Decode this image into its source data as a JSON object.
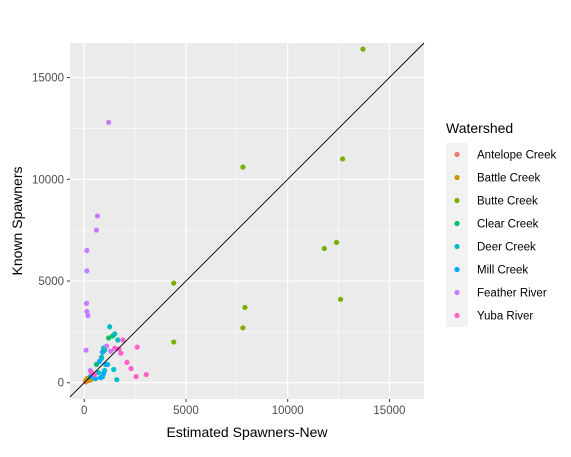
{
  "chart_data": {
    "type": "scatter",
    "title": "",
    "xlabel": "Estimated Spawners-New",
    "ylabel": "Known Spawners",
    "xlim": [
      -700,
      16700
    ],
    "ylim": [
      -800,
      16700
    ],
    "x_ticks": [
      {
        "value": 0,
        "label": "0"
      },
      {
        "value": 5000,
        "label": "5000"
      },
      {
        "value": 10000,
        "label": "10000"
      },
      {
        "value": 15000,
        "label": "15000"
      }
    ],
    "y_ticks": [
      {
        "value": 0,
        "label": "0"
      },
      {
        "value": 5000,
        "label": "5000"
      },
      {
        "value": 10000,
        "label": "10000"
      },
      {
        "value": 15000,
        "label": "15000"
      }
    ],
    "grid": true,
    "reference_line": {
      "type": "identity",
      "slope": 1,
      "intercept": 0,
      "color": "#000000"
    },
    "legend": {
      "title": "Watershed",
      "position": "right"
    },
    "series": [
      {
        "name": "Antelope Creek",
        "color": "#F8766D",
        "points": [
          [
            60,
            40
          ],
          [
            110,
            90
          ],
          [
            180,
            140
          ],
          [
            250,
            130
          ],
          [
            300,
            190
          ]
        ]
      },
      {
        "name": "Battle Creek",
        "color": "#CD9600",
        "points": [
          [
            100,
            150
          ],
          [
            150,
            210
          ],
          [
            200,
            100
          ],
          [
            260,
            190
          ],
          [
            320,
            140
          ]
        ]
      },
      {
        "name": "Butte Creek",
        "color": "#7CAE00",
        "points": [
          [
            13700,
            16400
          ],
          [
            12700,
            11000
          ],
          [
            7800,
            10600
          ],
          [
            12400,
            6900
          ],
          [
            11800,
            6600
          ],
          [
            4400,
            4900
          ],
          [
            7900,
            3700
          ],
          [
            12600,
            4100
          ],
          [
            7800,
            2700
          ],
          [
            4400,
            2000
          ]
        ]
      },
      {
        "name": "Clear Creek",
        "color": "#00BE67",
        "points": [
          [
            1400,
            2300
          ],
          [
            1200,
            2200
          ],
          [
            1000,
            1600
          ],
          [
            850,
            1250
          ],
          [
            600,
            900
          ]
        ]
      },
      {
        "name": "Deer Creek",
        "color": "#00BFC4",
        "points": [
          [
            1250,
            2750
          ],
          [
            1500,
            2400
          ],
          [
            1650,
            2100
          ],
          [
            950,
            1700
          ],
          [
            850,
            1200
          ],
          [
            1150,
            900
          ],
          [
            1000,
            600
          ],
          [
            900,
            300
          ],
          [
            1450,
            650
          ],
          [
            1600,
            150
          ],
          [
            700,
            500
          ],
          [
            450,
            300
          ]
        ]
      },
      {
        "name": "Mill Creek",
        "color": "#00A9FF",
        "points": [
          [
            900,
            1500
          ],
          [
            750,
            1050
          ],
          [
            1050,
            900
          ],
          [
            950,
            450
          ],
          [
            800,
            250
          ],
          [
            400,
            400
          ],
          [
            550,
            200
          ],
          [
            300,
            300
          ]
        ]
      },
      {
        "name": "Feather River",
        "color": "#C77CFF",
        "points": [
          [
            1200,
            12800
          ],
          [
            650,
            8200
          ],
          [
            600,
            7500
          ],
          [
            130,
            6500
          ],
          [
            130,
            5500
          ],
          [
            110,
            3900
          ],
          [
            130,
            3500
          ],
          [
            180,
            3300
          ],
          [
            90,
            1600
          ],
          [
            1100,
            1800
          ],
          [
            1300,
            1550
          ],
          [
            300,
            600
          ]
        ]
      },
      {
        "name": "Yuba River",
        "color": "#FF61CC",
        "points": [
          [
            1900,
            2100
          ],
          [
            1700,
            1650
          ],
          [
            2600,
            1750
          ],
          [
            2100,
            1000
          ],
          [
            2300,
            700
          ],
          [
            1800,
            1450
          ],
          [
            3050,
            400
          ],
          [
            2550,
            300
          ],
          [
            1500,
            1700
          ],
          [
            350,
            500
          ],
          [
            500,
            400
          ]
        ]
      }
    ]
  }
}
